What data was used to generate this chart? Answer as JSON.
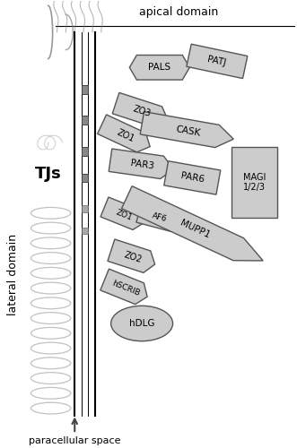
{
  "title_apical": "apical domain",
  "title_lateral": "lateral domain",
  "title_paracellular": "paracellular space",
  "label_TJs": "TJs",
  "bg_color": "#ffffff",
  "fc": "#cccccc",
  "ec": "#555555",
  "figw": 3.31,
  "figh": 5.0,
  "dpi": 100
}
